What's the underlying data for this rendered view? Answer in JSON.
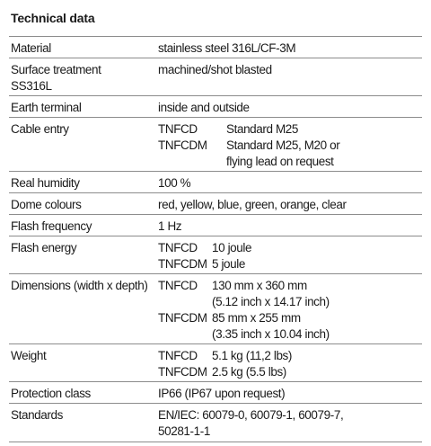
{
  "title": "Technical data",
  "rows": [
    {
      "label": "Material",
      "value": "stainless steel 316L/CF-3M"
    },
    {
      "label": "Surface treatment\nSS316L",
      "value": "machined/shot blasted"
    },
    {
      "label": "Earth terminal",
      "value": "inside and outside"
    },
    {
      "label": "Cable entry",
      "entries": [
        {
          "code": "TNFCD",
          "lines": [
            "Standard M25"
          ]
        },
        {
          "code": "TNFCDM",
          "lines": [
            "Standard M25, M20 or",
            "flying lead on request"
          ]
        }
      ]
    },
    {
      "label": "Real humidity",
      "value": "100 %"
    },
    {
      "label": "Dome colours",
      "value": "red, yellow, blue, green, orange, clear"
    },
    {
      "label": "Flash frequency",
      "value": "1 Hz"
    },
    {
      "label": "Flash energy",
      "entries": [
        {
          "code": "TNFCD",
          "lines": [
            "10 joule"
          ]
        },
        {
          "code": "TNFCDM",
          "lines": [
            "5 joule"
          ]
        }
      ]
    },
    {
      "label": "Dimensions (width x depth)",
      "entries": [
        {
          "code": "TNFCD",
          "lines": [
            "130 mm x 360 mm",
            "(5.12 inch x 14.17 inch)"
          ]
        },
        {
          "code": "TNFCDM",
          "lines": [
            "85 mm x 255 mm",
            "(3.35 inch x 10.04 inch)"
          ]
        }
      ]
    },
    {
      "label": "Weight",
      "entries": [
        {
          "code": "TNFCD",
          "lines": [
            "5.1 kg (11,2 lbs)"
          ]
        },
        {
          "code": "TNFCDM",
          "lines": [
            "2.5 kg (5.5 lbs)"
          ]
        }
      ]
    },
    {
      "label": "Protection class",
      "value": "IP66 (IP67 upon request)"
    },
    {
      "label": "Standards",
      "value": "EN/IEC: 60079-0, 60079-1, 60079-7,\n50281-1-1"
    }
  ]
}
